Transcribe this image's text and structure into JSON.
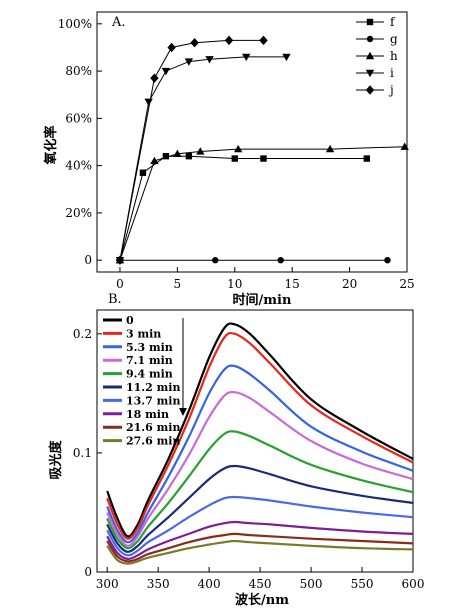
{
  "chart_data": [
    {
      "panel_label": "A.",
      "type": "line",
      "xlabel": "时间/min",
      "ylabel": "氧化率",
      "xlim": [
        -2,
        25
      ],
      "ylim": [
        -5,
        105
      ],
      "x_ticks": [
        0,
        5,
        10,
        15,
        20,
        25
      ],
      "y_ticks": [
        0,
        20,
        40,
        60,
        80,
        100
      ],
      "y_tick_labels": [
        "0",
        "20%",
        "40%",
        "60%",
        "80%",
        "100%"
      ],
      "legend_position": "top-right",
      "series": [
        {
          "name": "f",
          "marker": "square",
          "x": [
            0,
            2,
            4,
            6,
            10,
            12.5,
            21.5
          ],
          "y": [
            0,
            37,
            44,
            44,
            43,
            43,
            43
          ]
        },
        {
          "name": "g",
          "marker": "circle",
          "x": [
            0,
            8.3,
            14,
            23.3
          ],
          "y": [
            0,
            0,
            0,
            0
          ]
        },
        {
          "name": "h",
          "marker": "triangle-up",
          "x": [
            0,
            3,
            5,
            7,
            10.3,
            18.3,
            24.8
          ],
          "y": [
            0,
            42,
            45,
            46,
            47,
            47,
            48
          ]
        },
        {
          "name": "i",
          "marker": "triangle-down",
          "x": [
            0,
            2.5,
            4,
            6,
            7.8,
            11,
            14.5
          ],
          "y": [
            0,
            67,
            80,
            84,
            85,
            86,
            86
          ]
        },
        {
          "name": "j",
          "marker": "diamond",
          "x": [
            0,
            3,
            4.5,
            6.5,
            9.5,
            12.5
          ],
          "y": [
            0,
            77,
            90,
            92,
            93,
            93
          ]
        }
      ]
    },
    {
      "panel_label": "B.",
      "type": "line",
      "xlabel": "波长/nm",
      "ylabel": "吸光度",
      "xlim": [
        290,
        600
      ],
      "ylim": [
        0,
        0.22
      ],
      "x_ticks": [
        300,
        350,
        400,
        450,
        500,
        550,
        600
      ],
      "y_ticks": [
        0,
        0.1,
        0.2
      ],
      "y_tick_labels": [
        "0",
        "0.1",
        "0.2"
      ],
      "legend_position": "top-left",
      "x": [
        300,
        310,
        320,
        330,
        340,
        360,
        380,
        400,
        415,
        425,
        440,
        460,
        500,
        550,
        600
      ],
      "series": [
        {
          "name": "0",
          "color": "#000000",
          "y": [
            0.068,
            0.045,
            0.03,
            0.04,
            0.06,
            0.095,
            0.135,
            0.18,
            0.205,
            0.208,
            0.2,
            0.182,
            0.145,
            0.118,
            0.095
          ]
        },
        {
          "name": "3 min",
          "color": "#e8261b",
          "y": [
            0.062,
            0.04,
            0.028,
            0.037,
            0.056,
            0.09,
            0.128,
            0.172,
            0.197,
            0.2,
            0.192,
            0.175,
            0.14,
            0.114,
            0.092
          ]
        },
        {
          "name": "5.3 min",
          "color": "#3465e0",
          "y": [
            0.055,
            0.035,
            0.025,
            0.033,
            0.05,
            0.08,
            0.113,
            0.15,
            0.17,
            0.173,
            0.166,
            0.152,
            0.122,
            0.101,
            0.085
          ]
        },
        {
          "name": "7.1 min",
          "color": "#c96ad6",
          "y": [
            0.05,
            0.032,
            0.022,
            0.03,
            0.045,
            0.07,
            0.098,
            0.13,
            0.148,
            0.151,
            0.146,
            0.134,
            0.11,
            0.091,
            0.078
          ]
        },
        {
          "name": "9.4 min",
          "color": "#27a02e",
          "y": [
            0.045,
            0.028,
            0.02,
            0.026,
            0.038,
            0.058,
            0.08,
            0.103,
            0.116,
            0.118,
            0.114,
            0.106,
            0.09,
            0.077,
            0.067
          ]
        },
        {
          "name": "11.2 min",
          "color": "#1c2a7a",
          "y": [
            0.04,
            0.024,
            0.017,
            0.022,
            0.031,
            0.046,
            0.062,
            0.078,
            0.087,
            0.089,
            0.087,
            0.082,
            0.072,
            0.064,
            0.058
          ]
        },
        {
          "name": "13.7 min",
          "color": "#4a68e8",
          "y": [
            0.035,
            0.02,
            0.014,
            0.018,
            0.025,
            0.035,
            0.046,
            0.056,
            0.062,
            0.063,
            0.062,
            0.06,
            0.055,
            0.05,
            0.046
          ]
        },
        {
          "name": "18 min",
          "color": "#7a1e9a",
          "y": [
            0.03,
            0.016,
            0.011,
            0.014,
            0.019,
            0.026,
            0.032,
            0.038,
            0.041,
            0.042,
            0.041,
            0.04,
            0.037,
            0.034,
            0.032
          ]
        },
        {
          "name": "21.6 min",
          "color": "#8a2a1c",
          "y": [
            0.026,
            0.013,
            0.009,
            0.011,
            0.015,
            0.02,
            0.025,
            0.029,
            0.031,
            0.032,
            0.031,
            0.03,
            0.028,
            0.026,
            0.024
          ]
        },
        {
          "name": "27.6 min",
          "color": "#7a7a2a",
          "y": [
            0.022,
            0.01,
            0.007,
            0.009,
            0.012,
            0.016,
            0.02,
            0.023,
            0.025,
            0.026,
            0.025,
            0.024,
            0.022,
            0.02,
            0.019
          ]
        }
      ]
    }
  ]
}
